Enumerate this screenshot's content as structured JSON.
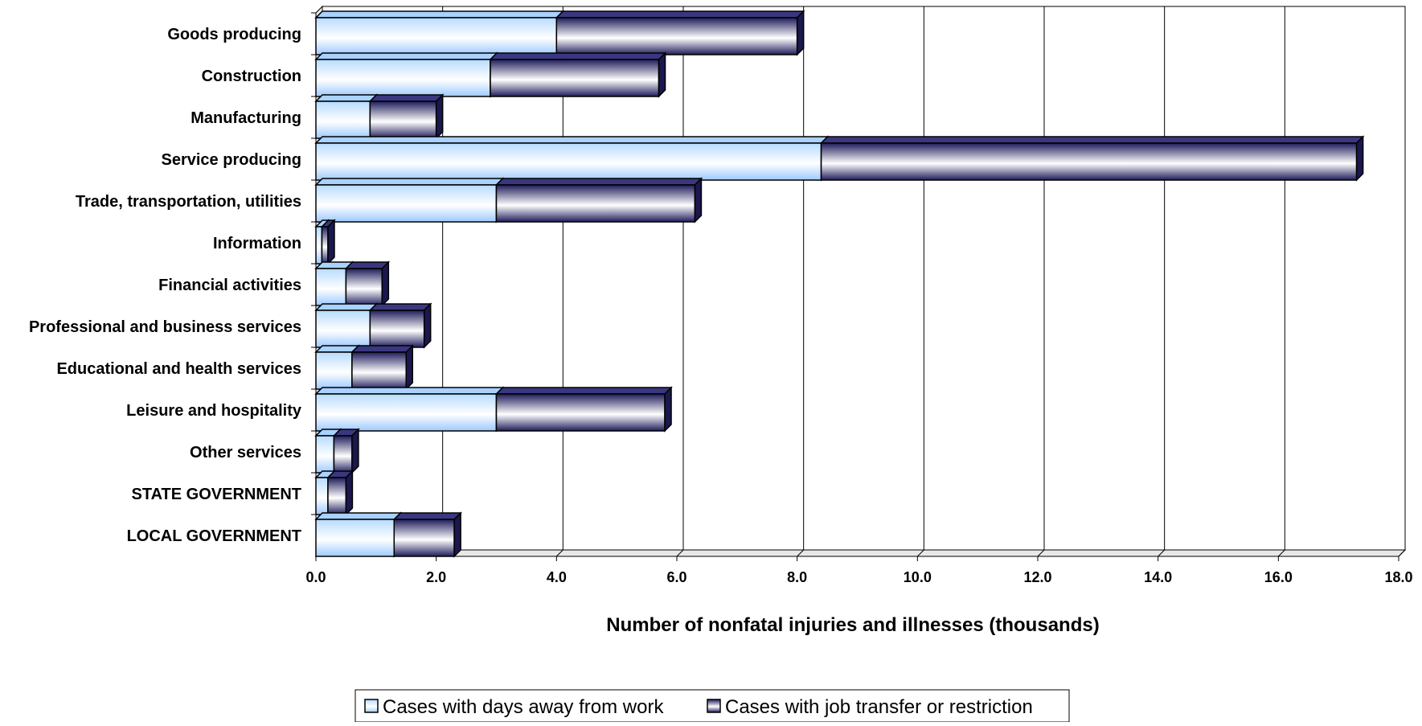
{
  "chart_data": {
    "type": "bar",
    "orientation": "horizontal",
    "stacked": true,
    "categories": [
      "Goods producing",
      "Construction",
      "Manufacturing",
      "Service producing",
      "Trade, transportation, utilities",
      "Information",
      "Financial activities",
      "Professional and business services",
      "Educational and health services",
      "Leisure and hospitality",
      "Other services",
      "STATE GOVERNMENT",
      "LOCAL GOVERNMENT"
    ],
    "series": [
      {
        "name": "Cases with days away from work",
        "color": "#cfe7ff",
        "values": [
          4.0,
          2.9,
          0.9,
          8.4,
          3.0,
          0.1,
          0.5,
          0.9,
          0.6,
          3.0,
          0.3,
          0.2,
          1.3
        ]
      },
      {
        "name": "Cases with job transfer or restriction",
        "color": "#2e2b6b",
        "values": [
          4.0,
          2.8,
          1.1,
          8.9,
          3.3,
          0.1,
          0.6,
          0.9,
          0.9,
          2.8,
          0.3,
          0.3,
          1.0
        ]
      }
    ],
    "xlabel": "Number of nonfatal injuries and illnesses (thousands)",
    "xlim": [
      0,
      18
    ],
    "xticks": [
      "0.0",
      "2.0",
      "4.0",
      "6.0",
      "8.0",
      "10.0",
      "12.0",
      "14.0",
      "16.0",
      "18.0"
    ],
    "grid": true,
    "legend_position": "bottom"
  }
}
